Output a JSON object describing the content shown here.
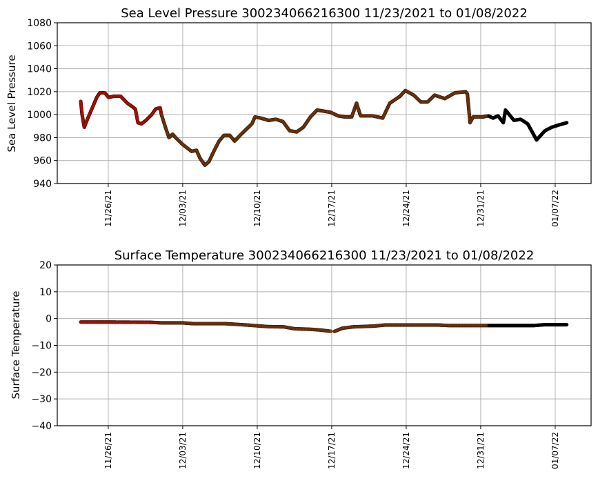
{
  "chart_data": [
    {
      "type": "scatter",
      "title": "Sea Level Pressure 300234066216300  11/23/2021 to 01/08/2022",
      "xlabel": "",
      "ylabel": "Sea Level Pressure",
      "ylim": [
        940,
        1080
      ],
      "yticks": [
        940,
        960,
        980,
        1000,
        1020,
        1040,
        1060,
        1080
      ],
      "xlim": [
        "2021-11-21T05:00",
        "2022-01-10T09:00"
      ],
      "xticks": [
        {
          "date": "2021-11-26",
          "label": "11/26/21"
        },
        {
          "date": "2021-12-03",
          "label": "12/03/21"
        },
        {
          "date": "2021-12-10",
          "label": "12/10/21"
        },
        {
          "date": "2021-12-17",
          "label": "12/17/21"
        },
        {
          "date": "2021-12-24",
          "label": "12/24/21"
        },
        {
          "date": "2021-12-31",
          "label": "12/31/21"
        },
        {
          "date": "2022-01-07",
          "label": "01/07/22"
        }
      ],
      "grid": true,
      "color_segments": [
        {
          "until": "2021-12-01T00:00",
          "color": "#ff0000"
        },
        {
          "until": "2021-12-31T18:00",
          "color": "#8b4513"
        },
        {
          "until": "2022-01-09T00:00",
          "color": "#000000"
        }
      ],
      "points": [
        [
          "2021-11-23T10:00",
          1011.5
        ],
        [
          "2021-11-23T13:00",
          1000
        ],
        [
          "2021-11-23T18:00",
          989
        ],
        [
          "2021-11-24T01:00",
          996
        ],
        [
          "2021-11-24T11:00",
          1005
        ],
        [
          "2021-11-24T22:00",
          1015
        ],
        [
          "2021-11-25T05:00",
          1019
        ],
        [
          "2021-11-25T16:00",
          1019
        ],
        [
          "2021-11-26T01:00",
          1015
        ],
        [
          "2021-11-26T12:00",
          1016
        ],
        [
          "2021-11-27T04:00",
          1016
        ],
        [
          "2021-11-27T19:00",
          1010
        ],
        [
          "2021-11-28T06:00",
          1007
        ],
        [
          "2021-11-28T13:00",
          1005
        ],
        [
          "2021-11-28T19:00",
          993
        ],
        [
          "2021-11-29T03:00",
          992
        ],
        [
          "2021-11-29T13:00",
          995
        ],
        [
          "2021-11-30T02:00",
          1000
        ],
        [
          "2021-11-30T11:00",
          1005
        ],
        [
          "2021-11-30T21:00",
          1006
        ],
        [
          "2021-12-01T00:00",
          1000
        ],
        [
          "2021-12-01T09:00",
          989
        ],
        [
          "2021-12-01T17:00",
          980
        ],
        [
          "2021-12-02T01:00",
          983
        ],
        [
          "2021-12-02T08:00",
          980
        ],
        [
          "2021-12-03T00:00",
          974
        ],
        [
          "2021-12-03T20:00",
          968
        ],
        [
          "2021-12-04T07:00",
          969
        ],
        [
          "2021-12-04T15:00",
          962
        ],
        [
          "2021-12-05T02:00",
          956
        ],
        [
          "2021-12-05T11:00",
          959
        ],
        [
          "2021-12-05T22:00",
          968
        ],
        [
          "2021-12-06T10:00",
          977
        ],
        [
          "2021-12-06T21:00",
          982
        ],
        [
          "2021-12-07T10:00",
          982
        ],
        [
          "2021-12-07T21:00",
          977
        ],
        [
          "2021-12-08T12:00",
          983
        ],
        [
          "2021-12-09T12:00",
          992
        ],
        [
          "2021-12-09T19:00",
          998
        ],
        [
          "2021-12-10T08:00",
          997
        ],
        [
          "2021-12-11T02:00",
          995
        ],
        [
          "2021-12-11T18:00",
          996
        ],
        [
          "2021-12-12T10:00",
          994
        ],
        [
          "2021-12-13T01:00",
          986
        ],
        [
          "2021-12-13T17:00",
          985
        ],
        [
          "2021-12-14T08:00",
          989
        ],
        [
          "2021-12-15T00:00",
          998
        ],
        [
          "2021-12-15T15:00",
          1004
        ],
        [
          "2021-12-16T07:00",
          1003
        ],
        [
          "2021-12-16T22:00",
          1002
        ],
        [
          "2021-12-17T14:00",
          999
        ],
        [
          "2021-12-18T06:00",
          998
        ],
        [
          "2021-12-18T21:00",
          998
        ],
        [
          "2021-12-19T08:00",
          1010
        ],
        [
          "2021-12-19T17:00",
          999
        ],
        [
          "2021-12-20T20:00",
          999
        ],
        [
          "2021-12-21T19:00",
          997
        ],
        [
          "2021-12-22T11:00",
          1010
        ],
        [
          "2021-12-23T10:00",
          1016
        ],
        [
          "2021-12-23T22:00",
          1021
        ],
        [
          "2021-12-24T17:00",
          1017
        ],
        [
          "2021-12-25T09:00",
          1011
        ],
        [
          "2021-12-26T00:00",
          1011
        ],
        [
          "2021-12-26T16:00",
          1017
        ],
        [
          "2021-12-27T15:00",
          1014
        ],
        [
          "2021-12-28T14:00",
          1019
        ],
        [
          "2021-12-29T14:00",
          1020
        ],
        [
          "2021-12-29T18:00",
          1018
        ],
        [
          "2021-12-30T00:00",
          993
        ],
        [
          "2021-12-30T07:00",
          998
        ],
        [
          "2021-12-31T05:00",
          998
        ],
        [
          "2021-12-31T17:00",
          999
        ],
        [
          "2022-01-01T04:00",
          997
        ],
        [
          "2022-01-01T15:00",
          999
        ],
        [
          "2022-01-02T03:00",
          993
        ],
        [
          "2022-01-02T08:00",
          1004
        ],
        [
          "2022-01-03T03:00",
          995
        ],
        [
          "2022-01-03T18:00",
          996
        ],
        [
          "2022-01-04T10:00",
          992
        ],
        [
          "2022-01-05T06:00",
          978
        ],
        [
          "2022-01-06T01:00",
          986
        ],
        [
          "2022-01-06T16:00",
          989
        ],
        [
          "2022-01-07T08:00",
          991
        ],
        [
          "2022-01-08T02:00",
          993
        ]
      ]
    },
    {
      "type": "scatter",
      "title": "Surface Temperature 300234066216300  11/23/2021 to 01/08/2022",
      "xlabel": "",
      "ylabel": "Surface Temperature",
      "ylim": [
        -40,
        20
      ],
      "yticks": [
        -40,
        -30,
        -20,
        -10,
        0,
        10,
        20
      ],
      "ytick_labels": [
        "−40",
        "−30",
        "−20",
        "−10",
        "0",
        "10",
        "20"
      ],
      "xlim": [
        "2021-11-21T05:00",
        "2022-01-10T09:00"
      ],
      "xticks": [
        {
          "date": "2021-11-26",
          "label": "11/26/21"
        },
        {
          "date": "2021-12-03",
          "label": "12/03/21"
        },
        {
          "date": "2021-12-10",
          "label": "12/10/21"
        },
        {
          "date": "2021-12-17",
          "label": "12/17/21"
        },
        {
          "date": "2021-12-24",
          "label": "12/24/21"
        },
        {
          "date": "2021-12-31",
          "label": "12/31/21"
        },
        {
          "date": "2022-01-07",
          "label": "01/07/22"
        }
      ],
      "grid": true,
      "color_segments": [
        {
          "until": "2021-12-01T00:00",
          "color": "#ff0000"
        },
        {
          "until": "2021-12-31T18:00",
          "color": "#8b4513"
        },
        {
          "until": "2022-01-09T00:00",
          "color": "#000000"
        }
      ],
      "points": [
        [
          "2021-11-23T10:00",
          -1.3
        ],
        [
          "2021-11-26T00:00",
          -1.3
        ],
        [
          "2021-11-30T00:00",
          -1.4
        ],
        [
          "2021-12-01T00:00",
          -1.6
        ],
        [
          "2021-12-03T00:00",
          -1.6
        ],
        [
          "2021-12-04T00:00",
          -1.9
        ],
        [
          "2021-12-07T00:00",
          -1.9
        ],
        [
          "2021-12-09T00:00",
          -2.4
        ],
        [
          "2021-12-11T00:00",
          -3.0
        ],
        [
          "2021-12-12T12:00",
          -3.1
        ],
        [
          "2021-12-13T12:00",
          -3.8
        ],
        [
          "2021-12-15T00:00",
          -4.0
        ],
        [
          "2021-12-16T00:00",
          -4.3
        ],
        [
          "2021-12-17T00:00",
          -4.8
        ],
        [
          "2021-12-17T03:00",
          null
        ],
        [
          "2021-12-17T06:00",
          -4.8
        ],
        [
          "2021-12-18T00:00",
          -3.6
        ],
        [
          "2021-12-19T00:00",
          -3.1
        ],
        [
          "2021-12-21T00:00",
          -2.8
        ],
        [
          "2021-12-22T00:00",
          -2.4
        ],
        [
          "2021-12-27T00:00",
          -2.4
        ],
        [
          "2021-12-28T00:00",
          -2.6
        ],
        [
          "2022-01-05T00:00",
          -2.6
        ],
        [
          "2022-01-06T00:00",
          -2.3
        ],
        [
          "2022-01-08T02:00",
          -2.3
        ]
      ]
    }
  ]
}
